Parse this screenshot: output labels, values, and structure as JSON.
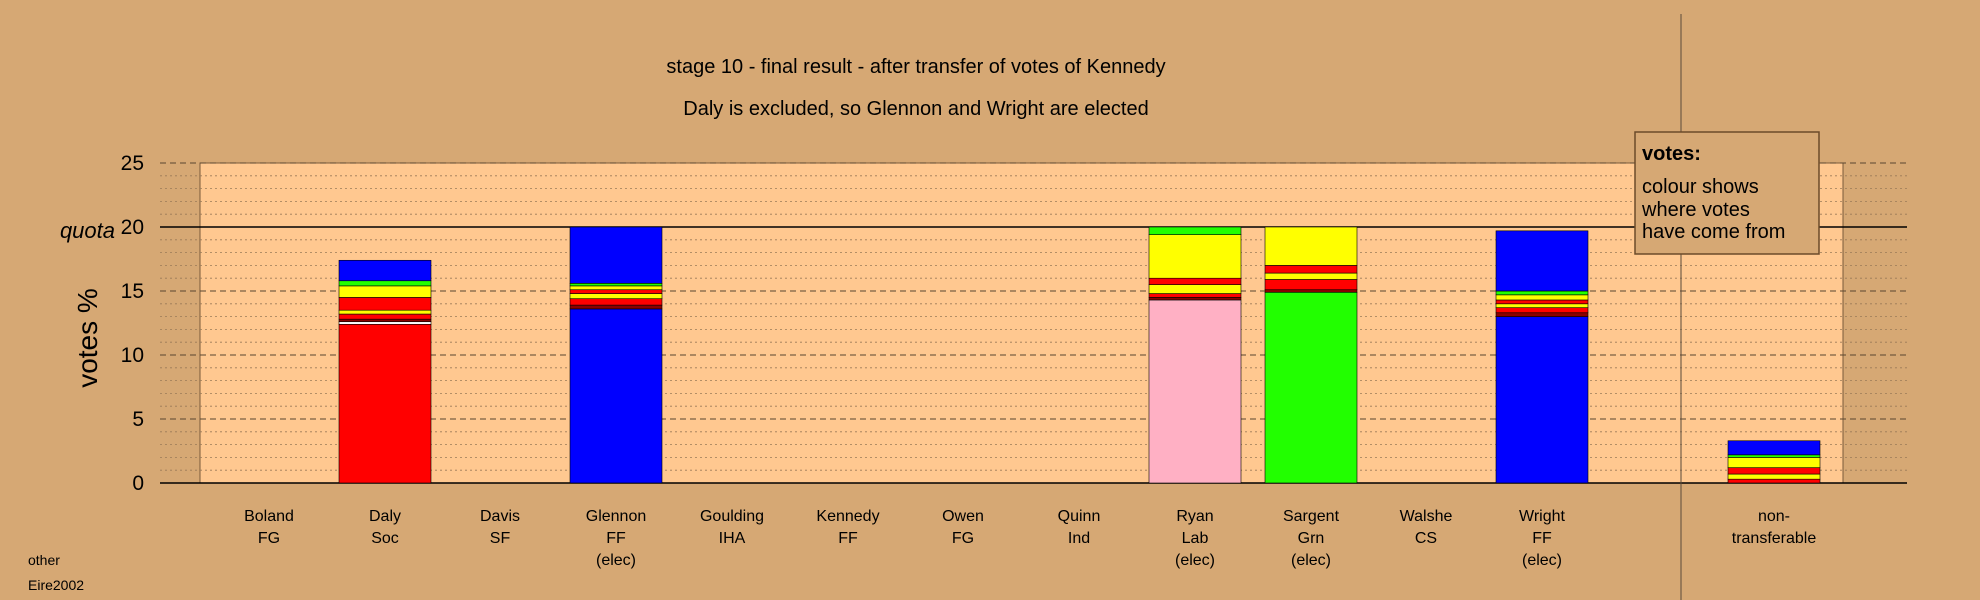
{
  "chart_data": {
    "type": "bar",
    "title": "stage 10 - final result - after transfer of votes of Kennedy",
    "subtitle": "Daly is excluded, so Glennon and Wright are elected",
    "ylabel": "votes %",
    "quota_label": "quota",
    "quota": 20,
    "ylim": [
      0,
      25
    ],
    "yticks": [
      "0",
      "5",
      "10",
      "15",
      "20",
      "25"
    ],
    "legend": {
      "title": "votes:",
      "lines": [
        "colour shows",
        "where votes",
        "have come from"
      ],
      "placement": "top-right"
    },
    "corner_notes": [
      "other",
      "Eire2002"
    ],
    "colors": {
      "red": "#ff0000",
      "blue": "#0000ff",
      "green": "#22ff00",
      "yellow": "#ffff00",
      "pink": "#ffb0c4",
      "dark_red": "#8b0000",
      "white": "#ffffff",
      "plot_bg": "#ffc890",
      "page_bg": "#d6a874"
    },
    "bars": [
      {
        "name": "Boland",
        "party": "FG",
        "status": "",
        "segments": []
      },
      {
        "name": "Daly",
        "party": "Soc",
        "status": "",
        "segments": [
          {
            "color": "red",
            "value": 12.4
          },
          {
            "color": "white",
            "value": 0.2
          },
          {
            "color": "dark_red",
            "value": 0.2
          },
          {
            "color": "red",
            "value": 0.4
          },
          {
            "color": "yellow",
            "value": 0.3
          },
          {
            "color": "red",
            "value": 1.0
          },
          {
            "color": "yellow",
            "value": 0.9
          },
          {
            "color": "green",
            "value": 0.4
          },
          {
            "color": "blue",
            "value": 1.6
          }
        ]
      },
      {
        "name": "Davis",
        "party": "SF",
        "status": "",
        "segments": []
      },
      {
        "name": "Glennon",
        "party": "FF",
        "status": "(elec)",
        "segments": [
          {
            "color": "blue",
            "value": 13.6
          },
          {
            "color": "dark_red",
            "value": 0.3
          },
          {
            "color": "red",
            "value": 0.5
          },
          {
            "color": "yellow",
            "value": 0.4
          },
          {
            "color": "red",
            "value": 0.3
          },
          {
            "color": "yellow",
            "value": 0.3
          },
          {
            "color": "green",
            "value": 0.2
          },
          {
            "color": "blue",
            "value": 4.4
          }
        ]
      },
      {
        "name": "Goulding",
        "party": "IHA",
        "status": "",
        "segments": []
      },
      {
        "name": "Kennedy",
        "party": "FF",
        "status": "",
        "segments": []
      },
      {
        "name": "Owen",
        "party": "FG",
        "status": "",
        "segments": []
      },
      {
        "name": "Quinn",
        "party": "Ind",
        "status": "",
        "segments": []
      },
      {
        "name": "Ryan",
        "party": "Lab",
        "status": "(elec)",
        "segments": [
          {
            "color": "pink",
            "value": 14.3
          },
          {
            "color": "dark_red",
            "value": 0.2
          },
          {
            "color": "red",
            "value": 0.3
          },
          {
            "color": "yellow",
            "value": 0.7
          },
          {
            "color": "red",
            "value": 0.5
          },
          {
            "color": "yellow",
            "value": 3.4
          },
          {
            "color": "green",
            "value": 0.6
          }
        ]
      },
      {
        "name": "Sargent",
        "party": "Grn",
        "status": "(elec)",
        "segments": [
          {
            "color": "green",
            "value": 14.9
          },
          {
            "color": "dark_red",
            "value": 0.2
          },
          {
            "color": "red",
            "value": 0.8
          },
          {
            "color": "yellow",
            "value": 0.5
          },
          {
            "color": "red",
            "value": 0.6
          },
          {
            "color": "yellow",
            "value": 3.0
          }
        ]
      },
      {
        "name": "Walshe",
        "party": "CS",
        "status": "",
        "segments": []
      },
      {
        "name": "Wright",
        "party": "FF",
        "status": "(elec)",
        "segments": [
          {
            "color": "blue",
            "value": 13.0
          },
          {
            "color": "dark_red",
            "value": 0.3
          },
          {
            "color": "red",
            "value": 0.4
          },
          {
            "color": "yellow",
            "value": 0.3
          },
          {
            "color": "red",
            "value": 0.3
          },
          {
            "color": "yellow",
            "value": 0.4
          },
          {
            "color": "green",
            "value": 0.3
          },
          {
            "color": "blue",
            "value": 4.7
          }
        ]
      },
      {
        "name": "non-",
        "party": "transferable",
        "status": "",
        "segments": [
          {
            "color": "red",
            "value": 0.3
          },
          {
            "color": "yellow",
            "value": 0.4
          },
          {
            "color": "red",
            "value": 0.5
          },
          {
            "color": "yellow",
            "value": 0.8
          },
          {
            "color": "green",
            "value": 0.2
          },
          {
            "color": "blue",
            "value": 1.1
          }
        ]
      }
    ]
  }
}
